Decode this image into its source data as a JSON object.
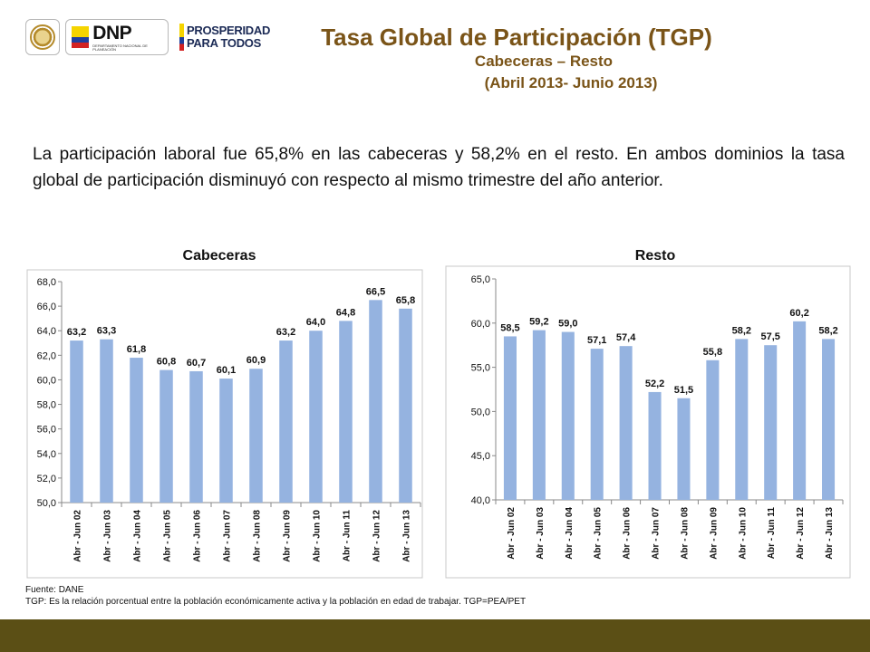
{
  "logos": {
    "dnp_text": "DNP",
    "dnp_sub": "DEPARTAMENTO NACIONAL DE PLANEACIÓN",
    "prosperidad_line1": "PROSPERIDAD",
    "prosperidad_line2": "PARA TODOS"
  },
  "header": {
    "title": "Tasa Global de Participación (TGP)",
    "subtitle": "Cabeceras – Resto",
    "period": "(Abril 2013- Junio 2013)"
  },
  "paragraph": "La participación laboral fue 65,8% en las cabeceras y 58,2% en el resto. En ambos dominios la tasa global de participación disminuyó con respecto al mismo trimestre del año anterior.",
  "colors": {
    "bar": "#95b3e0",
    "title": "#7a5418",
    "bottom_bar": "#5b4f15"
  },
  "chart_data": [
    {
      "type": "bar",
      "title": "Cabeceras",
      "categories": [
        "Abr - Jun 02",
        "Abr - Jun 03",
        "Abr - Jun 04",
        "Abr - Jun 05",
        "Abr - Jun 06",
        "Abr - Jun 07",
        "Abr - Jun 08",
        "Abr - Jun 09",
        "Abr - Jun 10",
        "Abr - Jun 11",
        "Abr - Jun 12",
        "Abr - Jun 13"
      ],
      "values": [
        63.2,
        63.3,
        61.8,
        60.8,
        60.7,
        60.1,
        60.9,
        63.2,
        64.0,
        64.8,
        66.5,
        65.8
      ],
      "value_labels": [
        "63,2",
        "63,3",
        "61,8",
        "60,8",
        "60,7",
        "60,1",
        "60,9",
        "63,2",
        "64,0",
        "64,8",
        "66,5",
        "65,8"
      ],
      "ylim": [
        50,
        68
      ],
      "yticks": [
        50,
        52,
        54,
        56,
        58,
        60,
        62,
        64,
        66,
        68
      ],
      "ytick_labels": [
        "50,0",
        "52,0",
        "54,0",
        "56,0",
        "58,0",
        "60,0",
        "62,0",
        "64,0",
        "66,0",
        "68,0"
      ],
      "xlabel": "",
      "ylabel": "",
      "grid": false,
      "legend": "none"
    },
    {
      "type": "bar",
      "title": "Resto",
      "categories": [
        "Abr - Jun 02",
        "Abr - Jun 03",
        "Abr - Jun 04",
        "Abr - Jun 05",
        "Abr - Jun 06",
        "Abr - Jun 07",
        "Abr - Jun 08",
        "Abr - Jun 09",
        "Abr - Jun 10",
        "Abr - Jun 11",
        "Abr - Jun 12",
        "Abr - Jun 13"
      ],
      "values": [
        58.5,
        59.2,
        59.0,
        57.1,
        57.4,
        52.2,
        51.5,
        55.8,
        58.2,
        57.5,
        60.2,
        58.2
      ],
      "value_labels": [
        "58,5",
        "59,2",
        "59,0",
        "57,1",
        "57,4",
        "52,2",
        "51,5",
        "55,8",
        "58,2",
        "57,5",
        "60,2",
        "58,2"
      ],
      "ylim": [
        40,
        65
      ],
      "yticks": [
        40,
        45,
        50,
        55,
        60,
        65
      ],
      "ytick_labels": [
        "40,0",
        "45,0",
        "50,0",
        "55,0",
        "60,0",
        "65,0"
      ],
      "xlabel": "",
      "ylabel": "",
      "grid": false,
      "legend": "none"
    }
  ],
  "footer": {
    "source": "Fuente: DANE",
    "note": "TGP:  Es la relación porcentual entre la población económicamente activa y la población  en edad de trabajar. TGP=PEA/PET"
  }
}
